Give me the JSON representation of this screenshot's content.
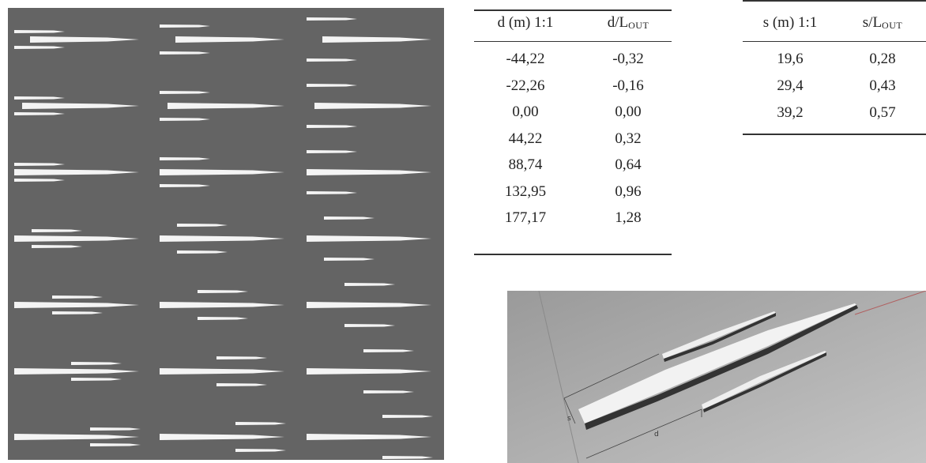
{
  "table_d": {
    "header": [
      "d (m) 1:1",
      {
        "base": "d/L",
        "subscript": "OUT"
      }
    ],
    "rows": [
      [
        "-44,22",
        "-0,32"
      ],
      [
        "-22,26",
        "-0,16"
      ],
      [
        "0,00",
        "0,00"
      ],
      [
        "44,22",
        "0,32"
      ],
      [
        "88,74",
        "0,64"
      ],
      [
        "132,95",
        "0,96"
      ],
      [
        "177,17",
        "1,28"
      ]
    ]
  },
  "table_s": {
    "header": [
      "s (m) 1:1",
      {
        "base": "s/L",
        "subscript": "OUT"
      }
    ],
    "rows": [
      [
        "19,6",
        "0,28"
      ],
      [
        "29,4",
        "0,43"
      ],
      [
        "39,2",
        "0,57"
      ]
    ]
  },
  "render": {
    "labels": [
      "s",
      "d"
    ]
  }
}
